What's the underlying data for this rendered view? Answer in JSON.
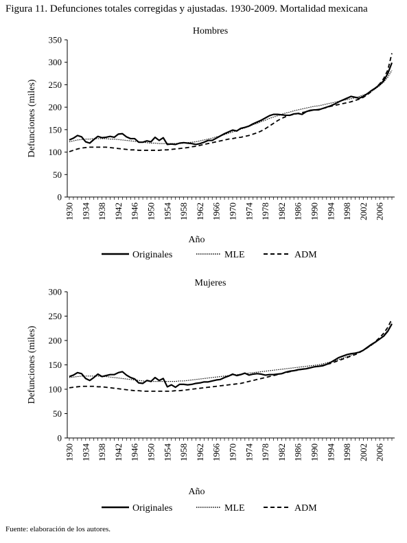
{
  "figure": {
    "title": "Figura 11. Defunciones totales corregidas y ajustadas. 1930-2009. Mortalidad mexicana",
    "source": "Fuente: elaboración de los autores."
  },
  "chart_data": [
    {
      "type": "line",
      "title": "Hombres",
      "xlabel": "Año",
      "ylabel": "Defunciones (miles)",
      "xlim": [
        1930,
        2009
      ],
      "ylim": [
        0,
        350
      ],
      "yticks": [
        0,
        50,
        100,
        150,
        200,
        250,
        300,
        350
      ],
      "xticks": [
        1930,
        1934,
        1938,
        1942,
        1946,
        1950,
        1954,
        1958,
        1962,
        1966,
        1970,
        1974,
        1978,
        1982,
        1986,
        1990,
        1994,
        1998,
        2002,
        2006
      ],
      "grid": false,
      "legend": "bottom",
      "x": [
        1930,
        1931,
        1932,
        1933,
        1934,
        1935,
        1936,
        1937,
        1938,
        1939,
        1940,
        1941,
        1942,
        1943,
        1944,
        1945,
        1946,
        1947,
        1948,
        1949,
        1950,
        1951,
        1952,
        1953,
        1954,
        1955,
        1956,
        1957,
        1958,
        1959,
        1960,
        1961,
        1962,
        1963,
        1964,
        1965,
        1966,
        1967,
        1968,
        1969,
        1970,
        1971,
        1972,
        1973,
        1974,
        1975,
        1976,
        1977,
        1978,
        1979,
        1980,
        1981,
        1982,
        1983,
        1984,
        1985,
        1986,
        1987,
        1988,
        1989,
        1990,
        1991,
        1992,
        1993,
        1994,
        1995,
        1996,
        1997,
        1998,
        1999,
        2000,
        2001,
        2002,
        2003,
        2004,
        2005,
        2006,
        2007,
        2008,
        2009
      ],
      "series": [
        {
          "name": "Originales",
          "style": "solid",
          "values": [
            127,
            131,
            137,
            134,
            123,
            120,
            128,
            135,
            132,
            133,
            135,
            133,
            140,
            141,
            134,
            130,
            130,
            122,
            122,
            125,
            123,
            133,
            126,
            132,
            117,
            118,
            117,
            120,
            121,
            120,
            119,
            117,
            119,
            122,
            126,
            126,
            131,
            136,
            141,
            145,
            149,
            147,
            153,
            155,
            158,
            163,
            167,
            171,
            176,
            181,
            184,
            184,
            183,
            182,
            182,
            185,
            186,
            184,
            190,
            193,
            194,
            194,
            197,
            200,
            203,
            207,
            212,
            216,
            220,
            224,
            222,
            220,
            224,
            230,
            237,
            243,
            250,
            259,
            275,
            299
          ]
        },
        {
          "name": "MLE",
          "style": "dotted",
          "values": [
            123,
            125,
            127,
            128,
            129,
            129,
            130,
            130,
            130,
            130,
            129,
            129,
            128,
            127,
            126,
            125,
            124,
            123,
            122,
            121,
            120,
            120,
            119,
            119,
            119,
            119,
            119,
            119,
            120,
            121,
            122,
            123,
            125,
            127,
            129,
            131,
            134,
            136,
            139,
            142,
            145,
            148,
            151,
            154,
            157,
            161,
            164,
            168,
            171,
            175,
            178,
            181,
            184,
            187,
            189,
            192,
            194,
            196,
            198,
            200,
            202,
            203,
            205,
            207,
            209,
            211,
            213,
            215,
            217,
            219,
            221,
            224,
            227,
            231,
            235,
            241,
            248,
            256,
            267,
            282
          ]
        },
        {
          "name": "ADM",
          "style": "dashed",
          "values": [
            101,
            104,
            107,
            109,
            110,
            111,
            111,
            111,
            111,
            111,
            110,
            109,
            108,
            107,
            106,
            105,
            105,
            104,
            104,
            104,
            104,
            104,
            104,
            105,
            105,
            106,
            107,
            108,
            109,
            110,
            112,
            113,
            115,
            117,
            119,
            121,
            123,
            125,
            127,
            129,
            130,
            132,
            133,
            135,
            137,
            140,
            143,
            147,
            152,
            158,
            164,
            170,
            175,
            179,
            182,
            184,
            186,
            188,
            190,
            192,
            194,
            195,
            197,
            199,
            202,
            204,
            206,
            208,
            210,
            212,
            215,
            218,
            222,
            228,
            235,
            243,
            252,
            264,
            283,
            320
          ]
        }
      ]
    },
    {
      "type": "line",
      "title": "Mujeres",
      "xlabel": "Año",
      "ylabel": "Defunciones (miles)",
      "xlim": [
        1930,
        2009
      ],
      "ylim": [
        0,
        300
      ],
      "yticks": [
        0,
        50,
        100,
        150,
        200,
        250,
        300
      ],
      "xticks": [
        1930,
        1934,
        1938,
        1942,
        1946,
        1950,
        1954,
        1958,
        1962,
        1966,
        1970,
        1974,
        1978,
        1982,
        1986,
        1990,
        1994,
        1998,
        2002,
        2006
      ],
      "grid": false,
      "legend": "bottom",
      "x": [
        1930,
        1931,
        1932,
        1933,
        1934,
        1935,
        1936,
        1937,
        1938,
        1939,
        1940,
        1941,
        1942,
        1943,
        1944,
        1945,
        1946,
        1947,
        1948,
        1949,
        1950,
        1951,
        1952,
        1953,
        1954,
        1955,
        1956,
        1957,
        1958,
        1959,
        1960,
        1961,
        1962,
        1963,
        1964,
        1965,
        1966,
        1967,
        1968,
        1969,
        1970,
        1971,
        1972,
        1973,
        1974,
        1975,
        1976,
        1977,
        1978,
        1979,
        1980,
        1981,
        1982,
        1983,
        1984,
        1985,
        1986,
        1987,
        1988,
        1989,
        1990,
        1991,
        1992,
        1993,
        1994,
        1995,
        1996,
        1997,
        1998,
        1999,
        2000,
        2001,
        2002,
        2003,
        2004,
        2005,
        2006,
        2007,
        2008,
        2009
      ],
      "series": [
        {
          "name": "Originales",
          "style": "solid",
          "values": [
            126,
            129,
            134,
            132,
            122,
            118,
            124,
            131,
            126,
            128,
            130,
            130,
            134,
            136,
            129,
            124,
            121,
            113,
            112,
            118,
            116,
            124,
            118,
            122,
            105,
            109,
            104,
            110,
            110,
            109,
            110,
            112,
            113,
            115,
            115,
            117,
            119,
            120,
            124,
            127,
            131,
            128,
            130,
            133,
            129,
            131,
            132,
            131,
            129,
            130,
            130,
            131,
            132,
            135,
            137,
            138,
            140,
            141,
            142,
            144,
            146,
            147,
            148,
            151,
            155,
            160,
            165,
            168,
            171,
            173,
            174,
            176,
            180,
            186,
            192,
            197,
            203,
            209,
            219,
            234
          ]
        },
        {
          "name": "MLE",
          "style": "dotted",
          "values": [
            124,
            125,
            126,
            127,
            127,
            127,
            127,
            127,
            126,
            126,
            125,
            124,
            123,
            122,
            121,
            120,
            119,
            118,
            117,
            117,
            116,
            116,
            116,
            116,
            116,
            116,
            116,
            117,
            117,
            118,
            119,
            120,
            121,
            122,
            123,
            124,
            125,
            126,
            127,
            128,
            129,
            130,
            131,
            132,
            133,
            134,
            135,
            136,
            137,
            138,
            139,
            140,
            141,
            142,
            143,
            144,
            145,
            146,
            147,
            148,
            149,
            150,
            152,
            154,
            156,
            158,
            161,
            164,
            167,
            170,
            173,
            176,
            180,
            185,
            190,
            196,
            203,
            211,
            221,
            236
          ]
        },
        {
          "name": "ADM",
          "style": "dashed",
          "values": [
            103,
            104,
            105,
            106,
            106,
            106,
            106,
            105,
            105,
            104,
            103,
            102,
            101,
            100,
            99,
            98,
            97,
            97,
            96,
            96,
            96,
            96,
            96,
            96,
            96,
            96,
            97,
            97,
            98,
            99,
            100,
            101,
            102,
            103,
            104,
            105,
            106,
            107,
            108,
            109,
            110,
            111,
            112,
            114,
            116,
            118,
            120,
            122,
            124,
            126,
            128,
            130,
            132,
            134,
            136,
            138,
            139,
            141,
            143,
            144,
            146,
            147,
            149,
            151,
            153,
            156,
            159,
            162,
            165,
            168,
            171,
            175,
            180,
            185,
            191,
            198,
            206,
            215,
            227,
            244
          ]
        }
      ]
    }
  ]
}
